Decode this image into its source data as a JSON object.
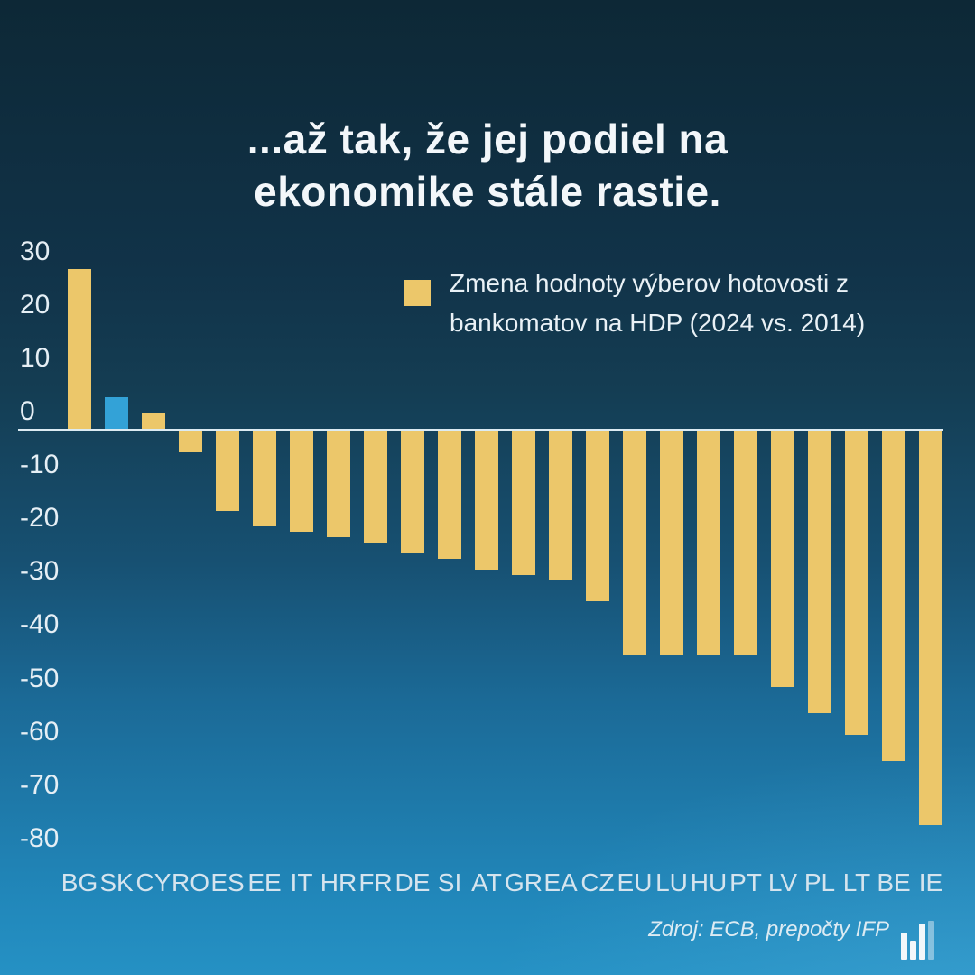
{
  "title": {
    "line1": "...až tak, že jej podiel na",
    "line2": "ekonomike stále rastie.",
    "text": "...až tak, že jej podiel na ekonomike stále rastie."
  },
  "legend": {
    "line1": "Zmena hodnoty výberov hotovosti z",
    "line2": "bankomatov na HDP (2024 vs. 2014)",
    "label": "Zmena hodnoty výberov hotovosti z bankomatov na HDP (2024 vs. 2014)"
  },
  "source": {
    "text": "Zdroj: ECB, prepočty IFP"
  },
  "colors": {
    "background_top": "#0d2836",
    "background_bottom": "#2591c4",
    "bar": "#ecc76a",
    "bar_highlight": "#33a2d7",
    "axis_line": "#dcebf3",
    "title_text": "#f3f7fa",
    "tick_text": "#e6eff5"
  },
  "chart_data": {
    "type": "bar",
    "title": "...až tak, že jej podiel na ekonomike stále rastie.",
    "legend_label": "Zmena hodnoty výberov hotovosti z bankomatov na HDP (2024 vs. 2014)",
    "legend_position": "top-right",
    "xlabel": "",
    "ylabel": "",
    "grid": false,
    "ylim": [
      -80,
      30
    ],
    "y_ticks": [
      30,
      20,
      10,
      0,
      -10,
      -20,
      -30,
      -40,
      -50,
      -60,
      -70,
      -80
    ],
    "categories": [
      "BG",
      "SK",
      "CY",
      "RO",
      "ES",
      "EE",
      "IT",
      "HR",
      "FR",
      "DE",
      "SI",
      "AT",
      "GR",
      "EA",
      "CZ",
      "EU",
      "LU",
      "HU",
      "PT",
      "LV",
      "PL",
      "LT",
      "BE",
      "IE"
    ],
    "values": [
      30,
      6,
      3,
      -4,
      -15,
      -18,
      -19,
      -20,
      -21,
      -23,
      -24,
      -26,
      -27,
      -28,
      -32,
      -42,
      -42,
      -42,
      -42,
      -48,
      -53,
      -57,
      -62,
      -74
    ],
    "highlight_category": "SK",
    "source": "Zdroj: ECB, prepočty IFP"
  },
  "logo": {
    "bar_heights": [
      30,
      21,
      40,
      43
    ]
  }
}
